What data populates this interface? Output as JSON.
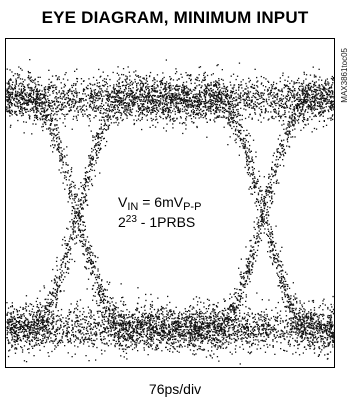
{
  "chart_data": {
    "type": "eye-diagram",
    "title": "EYE DIAGRAM, MINIMUM INPUT",
    "xlabel": "76ps/div",
    "ylabel": "",
    "grid": false,
    "annotations": {
      "vin_prefix": "V",
      "vin_sub": "IN",
      "vin_mid": " = 6mV",
      "vin_sub2": "P-P",
      "prbs_prefix": "2",
      "prbs_sup": "23",
      "prbs_suffix": " - 1PRBS"
    },
    "side_code": "MAX3861toc05",
    "crossings_div": [
      1.75,
      6.25
    ],
    "logic_high_band": "upper noise band",
    "logic_low_band": "lower noise band"
  }
}
